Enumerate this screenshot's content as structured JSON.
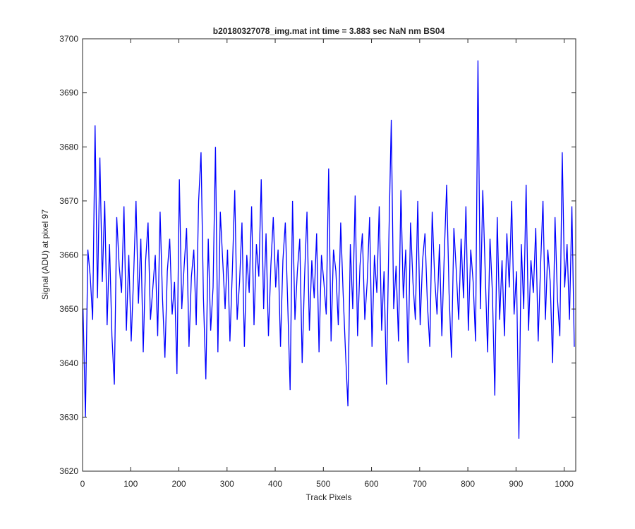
{
  "chart_data": {
    "type": "line",
    "title": "b20180327078_img.mat int time = 3.883 sec  NaN nm BS04",
    "x_label": "Track Pixels",
    "y_label": "Signal (ADU) at pixel 97",
    "color": "#0000ff",
    "xlim": [
      0,
      1024
    ],
    "ylim": [
      3620,
      3700
    ],
    "xticks": [
      0,
      100,
      200,
      300,
      400,
      500,
      600,
      700,
      800,
      900,
      1000
    ],
    "yticks": [
      3620,
      3630,
      3640,
      3650,
      3660,
      3670,
      3680,
      3690,
      3700
    ],
    "x": [
      1,
      6,
      11,
      16,
      21,
      26,
      31,
      36,
      41,
      46,
      51,
      56,
      61,
      66,
      71,
      76,
      81,
      86,
      91,
      96,
      101,
      106,
      111,
      116,
      121,
      126,
      131,
      136,
      141,
      146,
      151,
      156,
      161,
      166,
      171,
      176,
      181,
      186,
      191,
      196,
      201,
      206,
      211,
      216,
      221,
      226,
      231,
      236,
      241,
      246,
      251,
      256,
      261,
      266,
      271,
      276,
      281,
      286,
      291,
      296,
      301,
      306,
      311,
      316,
      321,
      326,
      331,
      336,
      341,
      346,
      351,
      356,
      361,
      366,
      371,
      376,
      381,
      386,
      391,
      396,
      401,
      406,
      411,
      416,
      421,
      426,
      431,
      436,
      441,
      446,
      451,
      456,
      461,
      466,
      471,
      476,
      481,
      486,
      491,
      496,
      501,
      506,
      511,
      516,
      521,
      526,
      531,
      536,
      541,
      546,
      551,
      556,
      561,
      566,
      571,
      576,
      581,
      586,
      591,
      596,
      601,
      606,
      611,
      616,
      621,
      626,
      631,
      636,
      641,
      646,
      651,
      656,
      661,
      666,
      671,
      676,
      681,
      686,
      691,
      696,
      701,
      706,
      711,
      716,
      721,
      726,
      731,
      736,
      741,
      746,
      751,
      756,
      761,
      766,
      771,
      776,
      781,
      786,
      791,
      796,
      801,
      806,
      811,
      816,
      821,
      826,
      831,
      836,
      841,
      846,
      851,
      856,
      861,
      866,
      871,
      876,
      881,
      886,
      891,
      896,
      901,
      906,
      911,
      916,
      921,
      926,
      931,
      936,
      941,
      946,
      951,
      956,
      961,
      966,
      971,
      976,
      981,
      986,
      991,
      996,
      1001,
      1006,
      1011,
      1016,
      1021
    ],
    "values": [
      3650,
      3630,
      3661,
      3656,
      3648,
      3684,
      3652,
      3678,
      3655,
      3670,
      3647,
      3662,
      3645,
      3636,
      3667,
      3658,
      3653,
      3669,
      3646,
      3660,
      3644,
      3656,
      3670,
      3651,
      3663,
      3642,
      3659,
      3666,
      3648,
      3654,
      3660,
      3645,
      3668,
      3652,
      3641,
      3657,
      3663,
      3649,
      3655,
      3638,
      3674,
      3650,
      3658,
      3665,
      3643,
      3656,
      3661,
      3647,
      3670,
      3679,
      3652,
      3637,
      3663,
      3646,
      3654,
      3680,
      3642,
      3668,
      3659,
      3650,
      3661,
      3644,
      3657,
      3672,
      3648,
      3655,
      3666,
      3643,
      3660,
      3653,
      3669,
      3647,
      3662,
      3656,
      3674,
      3650,
      3664,
      3645,
      3658,
      3667,
      3654,
      3661,
      3643,
      3659,
      3666,
      3651,
      3635,
      3670,
      3648,
      3657,
      3663,
      3640,
      3656,
      3668,
      3646,
      3659,
      3652,
      3664,
      3642,
      3660,
      3655,
      3649,
      3676,
      3644,
      3661,
      3657,
      3647,
      3666,
      3653,
      3642,
      3632,
      3662,
      3650,
      3671,
      3645,
      3658,
      3664,
      3648,
      3655,
      3667,
      3643,
      3660,
      3653,
      3669,
      3646,
      3657,
      3636,
      3663,
      3685,
      3650,
      3658,
      3644,
      3672,
      3652,
      3661,
      3640,
      3666,
      3655,
      3648,
      3670,
      3647,
      3659,
      3664,
      3651,
      3643,
      3668,
      3656,
      3649,
      3662,
      3645,
      3660,
      3673,
      3653,
      3641,
      3665,
      3657,
      3648,
      3663,
      3652,
      3669,
      3646,
      3661,
      3655,
      3644,
      3696,
      3650,
      3672,
      3657,
      3642,
      3663,
      3653,
      3634,
      3667,
      3648,
      3659,
      3645,
      3664,
      3654,
      3670,
      3649,
      3657,
      3626,
      3662,
      3650,
      3673,
      3646,
      3659,
      3653,
      3665,
      3644,
      3658,
      3670,
      3648,
      3661,
      3655,
      3640,
      3667,
      3652,
      3645,
      3679,
      3654,
      3662,
      3648,
      3669,
      3643
    ]
  }
}
